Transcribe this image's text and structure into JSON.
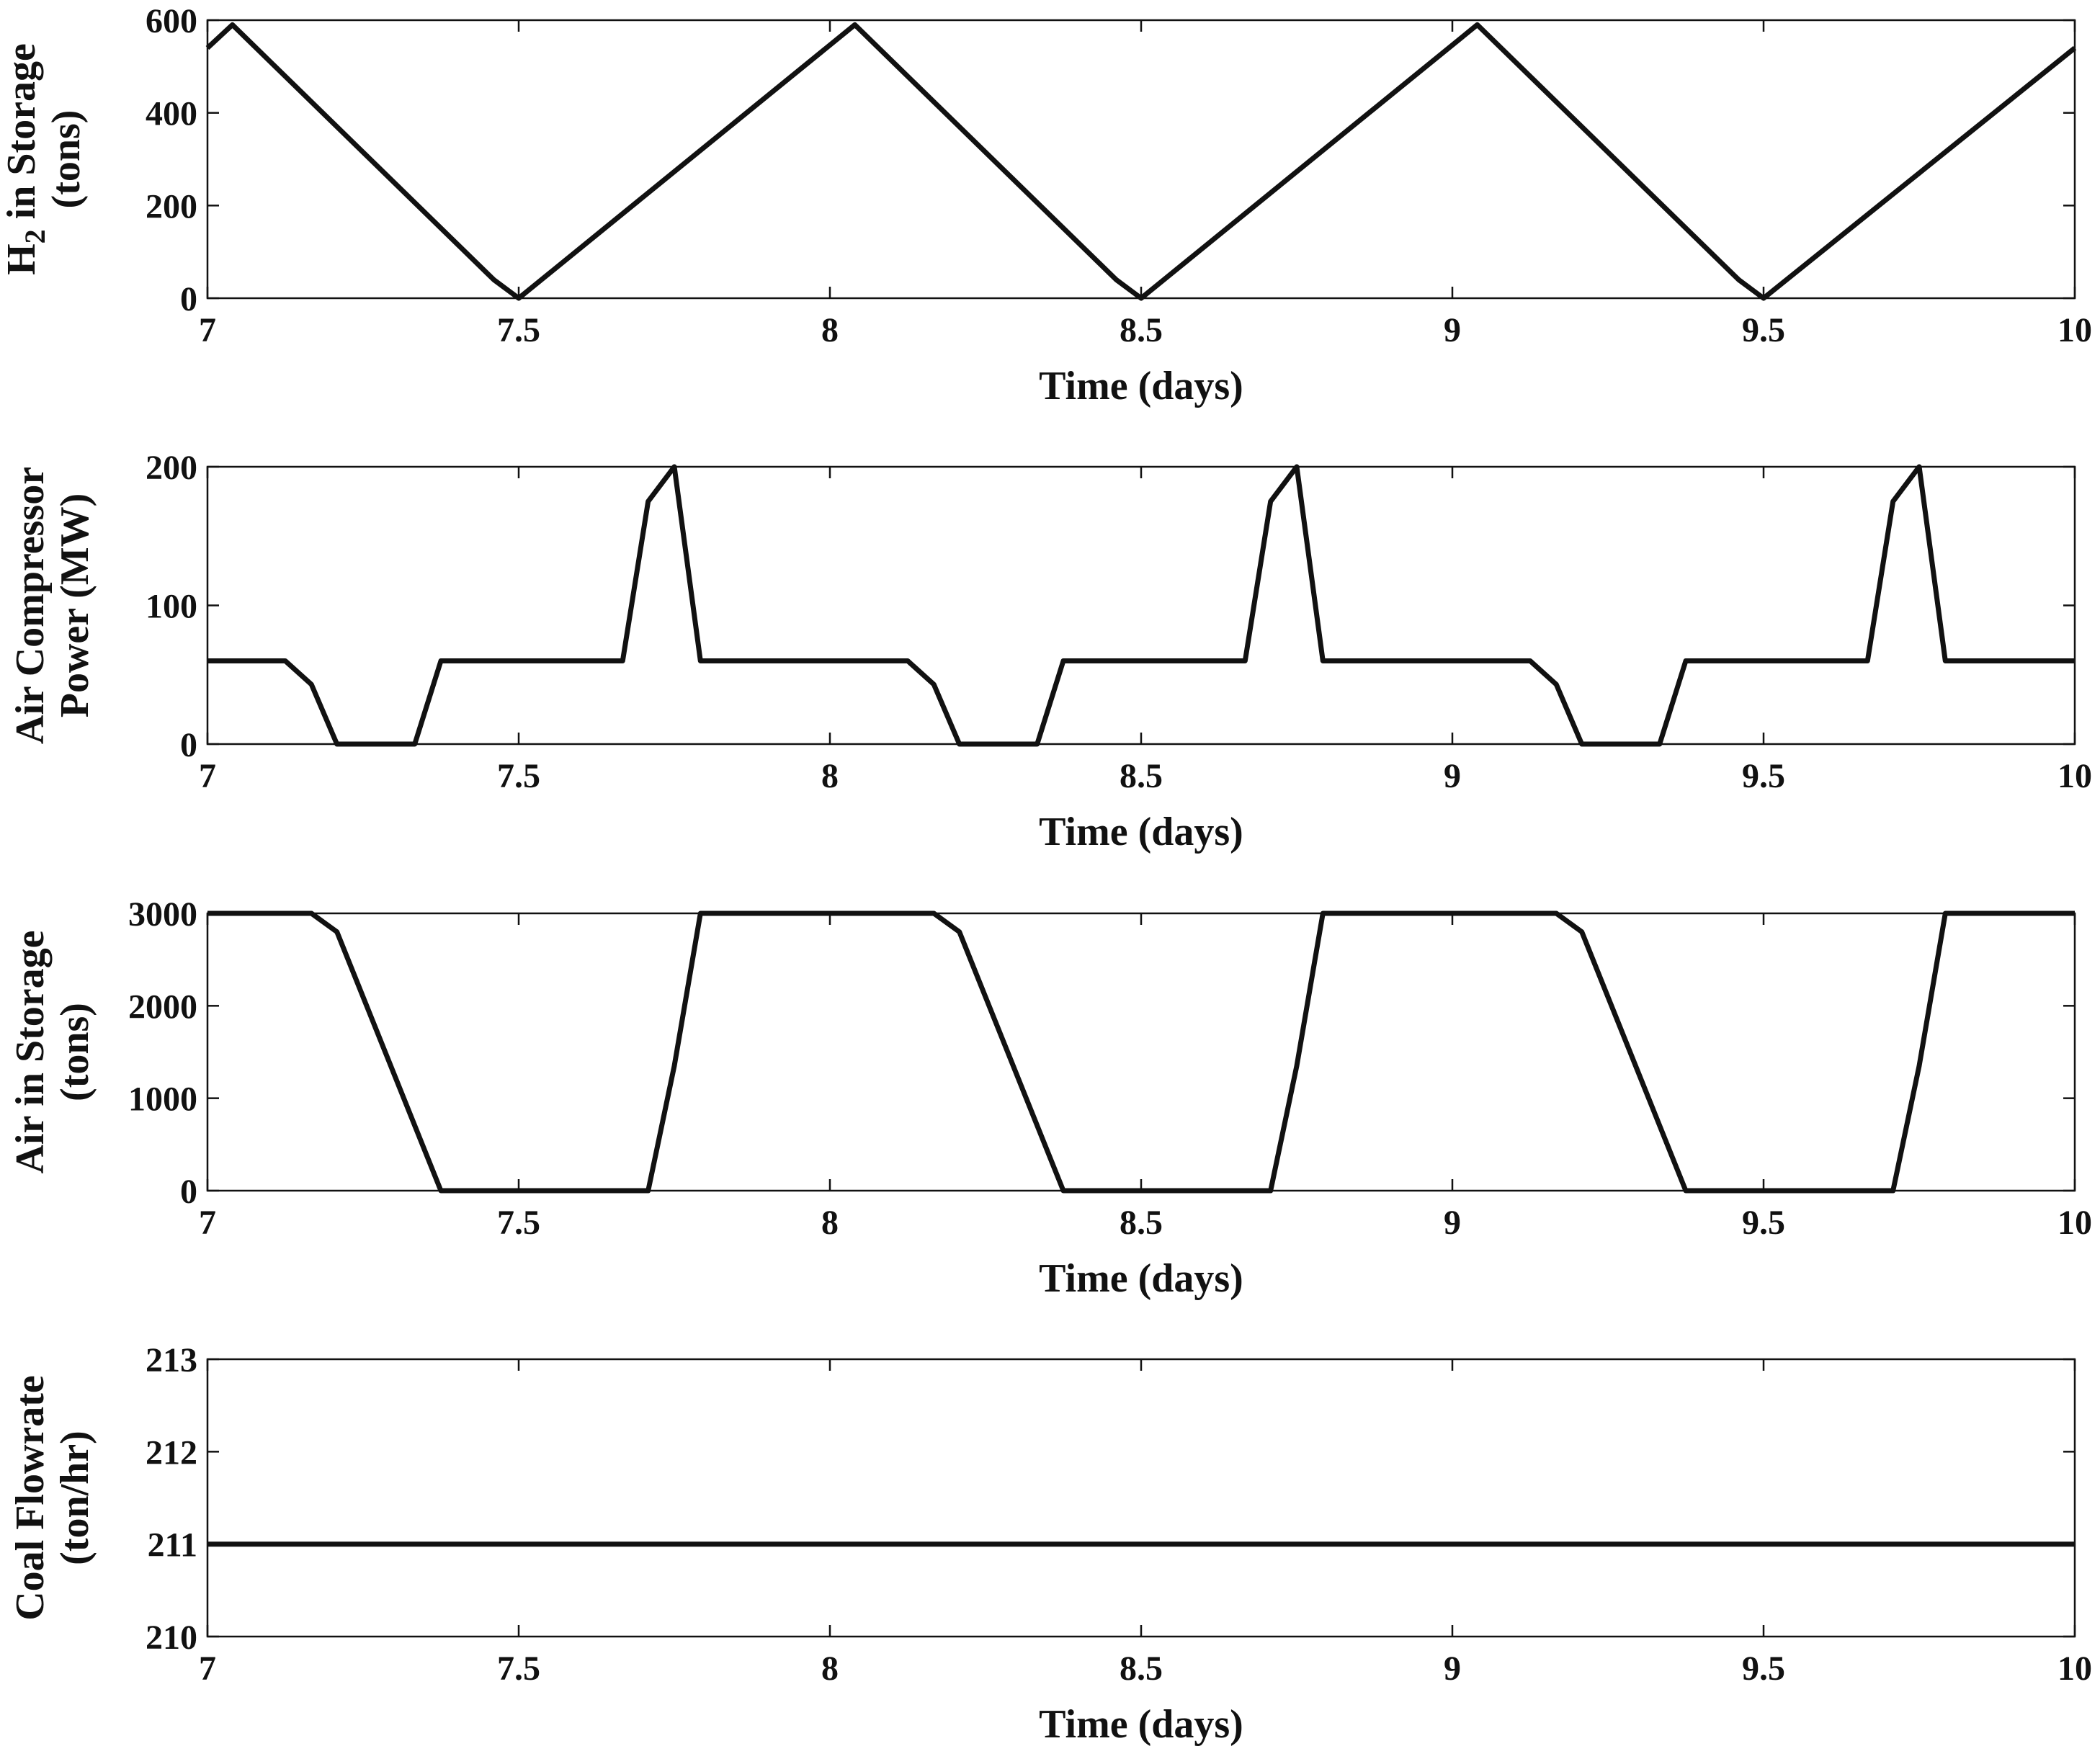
{
  "figure": {
    "line_color": "#111111",
    "background": "#ffffff"
  },
  "chart_data": [
    {
      "type": "line",
      "xlabel": "Time (days)",
      "ylabel_lines": [
        "H",
        "in Storage",
        "(tons)"
      ],
      "ylabel_subscript": "2",
      "xlim": [
        7,
        10
      ],
      "ylim": [
        0,
        600
      ],
      "xticks": [
        7,
        7.5,
        8,
        8.5,
        9,
        9.5,
        10
      ],
      "xtick_labels": [
        "7",
        "7.5",
        "8",
        "8.5",
        "9",
        "9.5",
        "10"
      ],
      "yticks": [
        0,
        200,
        400,
        600
      ],
      "ytick_labels": [
        "0",
        "200",
        "400",
        "600"
      ],
      "grid": false,
      "series": [
        {
          "x": [
            7.0,
            7.04,
            7.46,
            7.5,
            8.04,
            8.46,
            8.5,
            9.04,
            9.46,
            9.5,
            10.0
          ],
          "y": [
            540,
            590,
            40,
            0,
            590,
            40,
            0,
            590,
            40,
            0,
            540
          ]
        }
      ]
    },
    {
      "type": "line",
      "xlabel": "Time (days)",
      "ylabel_lines": [
        "Air Compressor",
        "Power (MW)"
      ],
      "xlim": [
        7,
        10
      ],
      "ylim": [
        0,
        200
      ],
      "xticks": [
        7,
        7.5,
        8,
        8.5,
        9,
        9.5,
        10
      ],
      "xtick_labels": [
        "7",
        "7.5",
        "8",
        "8.5",
        "9",
        "9.5",
        "10"
      ],
      "yticks": [
        0,
        100,
        200
      ],
      "ytick_labels": [
        "0",
        "100",
        "200"
      ],
      "grid": false,
      "series": [
        {
          "x": [
            7.0,
            7.125,
            7.167,
            7.208,
            7.333,
            7.375,
            7.667,
            7.708,
            7.75,
            7.792,
            8.125,
            8.167,
            8.208,
            8.333,
            8.375,
            8.667,
            8.708,
            8.75,
            8.792,
            9.125,
            9.167,
            9.208,
            9.333,
            9.375,
            9.667,
            9.708,
            9.75,
            9.792,
            10.0
          ],
          "y": [
            60,
            60,
            43,
            0,
            0,
            60,
            60,
            175,
            200,
            60,
            60,
            43,
            0,
            0,
            60,
            60,
            175,
            200,
            60,
            60,
            43,
            0,
            0,
            60,
            60,
            175,
            200,
            60,
            60
          ]
        }
      ]
    },
    {
      "type": "line",
      "xlabel": "Time (days)",
      "ylabel_lines": [
        "Air in Storage",
        "(tons)"
      ],
      "xlim": [
        7,
        10
      ],
      "ylim": [
        0,
        3000
      ],
      "xticks": [
        7,
        7.5,
        8,
        8.5,
        9,
        9.5,
        10
      ],
      "xtick_labels": [
        "7",
        "7.5",
        "8",
        "8.5",
        "9",
        "9.5",
        "10"
      ],
      "yticks": [
        0,
        1000,
        2000,
        3000
      ],
      "ytick_labels": [
        "0",
        "1000",
        "2000",
        "3000"
      ],
      "grid": false,
      "series": [
        {
          "x": [
            7.0,
            7.167,
            7.208,
            7.375,
            7.708,
            7.75,
            7.792,
            8.167,
            8.208,
            8.375,
            8.708,
            8.75,
            8.792,
            9.167,
            9.208,
            9.375,
            9.708,
            9.75,
            9.792,
            10.0
          ],
          "y": [
            3000,
            3000,
            2800,
            0,
            0,
            1350,
            3000,
            3000,
            2800,
            0,
            0,
            1350,
            3000,
            3000,
            2800,
            0,
            0,
            1350,
            3000,
            3000
          ]
        }
      ]
    },
    {
      "type": "line",
      "xlabel": "Time (days)",
      "ylabel_lines": [
        "Coal Flowrate",
        "(ton/hr)"
      ],
      "xlim": [
        7,
        10
      ],
      "ylim": [
        210,
        213
      ],
      "xticks": [
        7,
        7.5,
        8,
        8.5,
        9,
        9.5,
        10
      ],
      "xtick_labels": [
        "7",
        "7.5",
        "8",
        "8.5",
        "9",
        "9.5",
        "10"
      ],
      "yticks": [
        210,
        211,
        212,
        213
      ],
      "ytick_labels": [
        "210",
        "211",
        "212",
        "213"
      ],
      "grid": false,
      "series": [
        {
          "x": [
            7.0,
            10.0
          ],
          "y": [
            211,
            211
          ]
        }
      ]
    }
  ]
}
